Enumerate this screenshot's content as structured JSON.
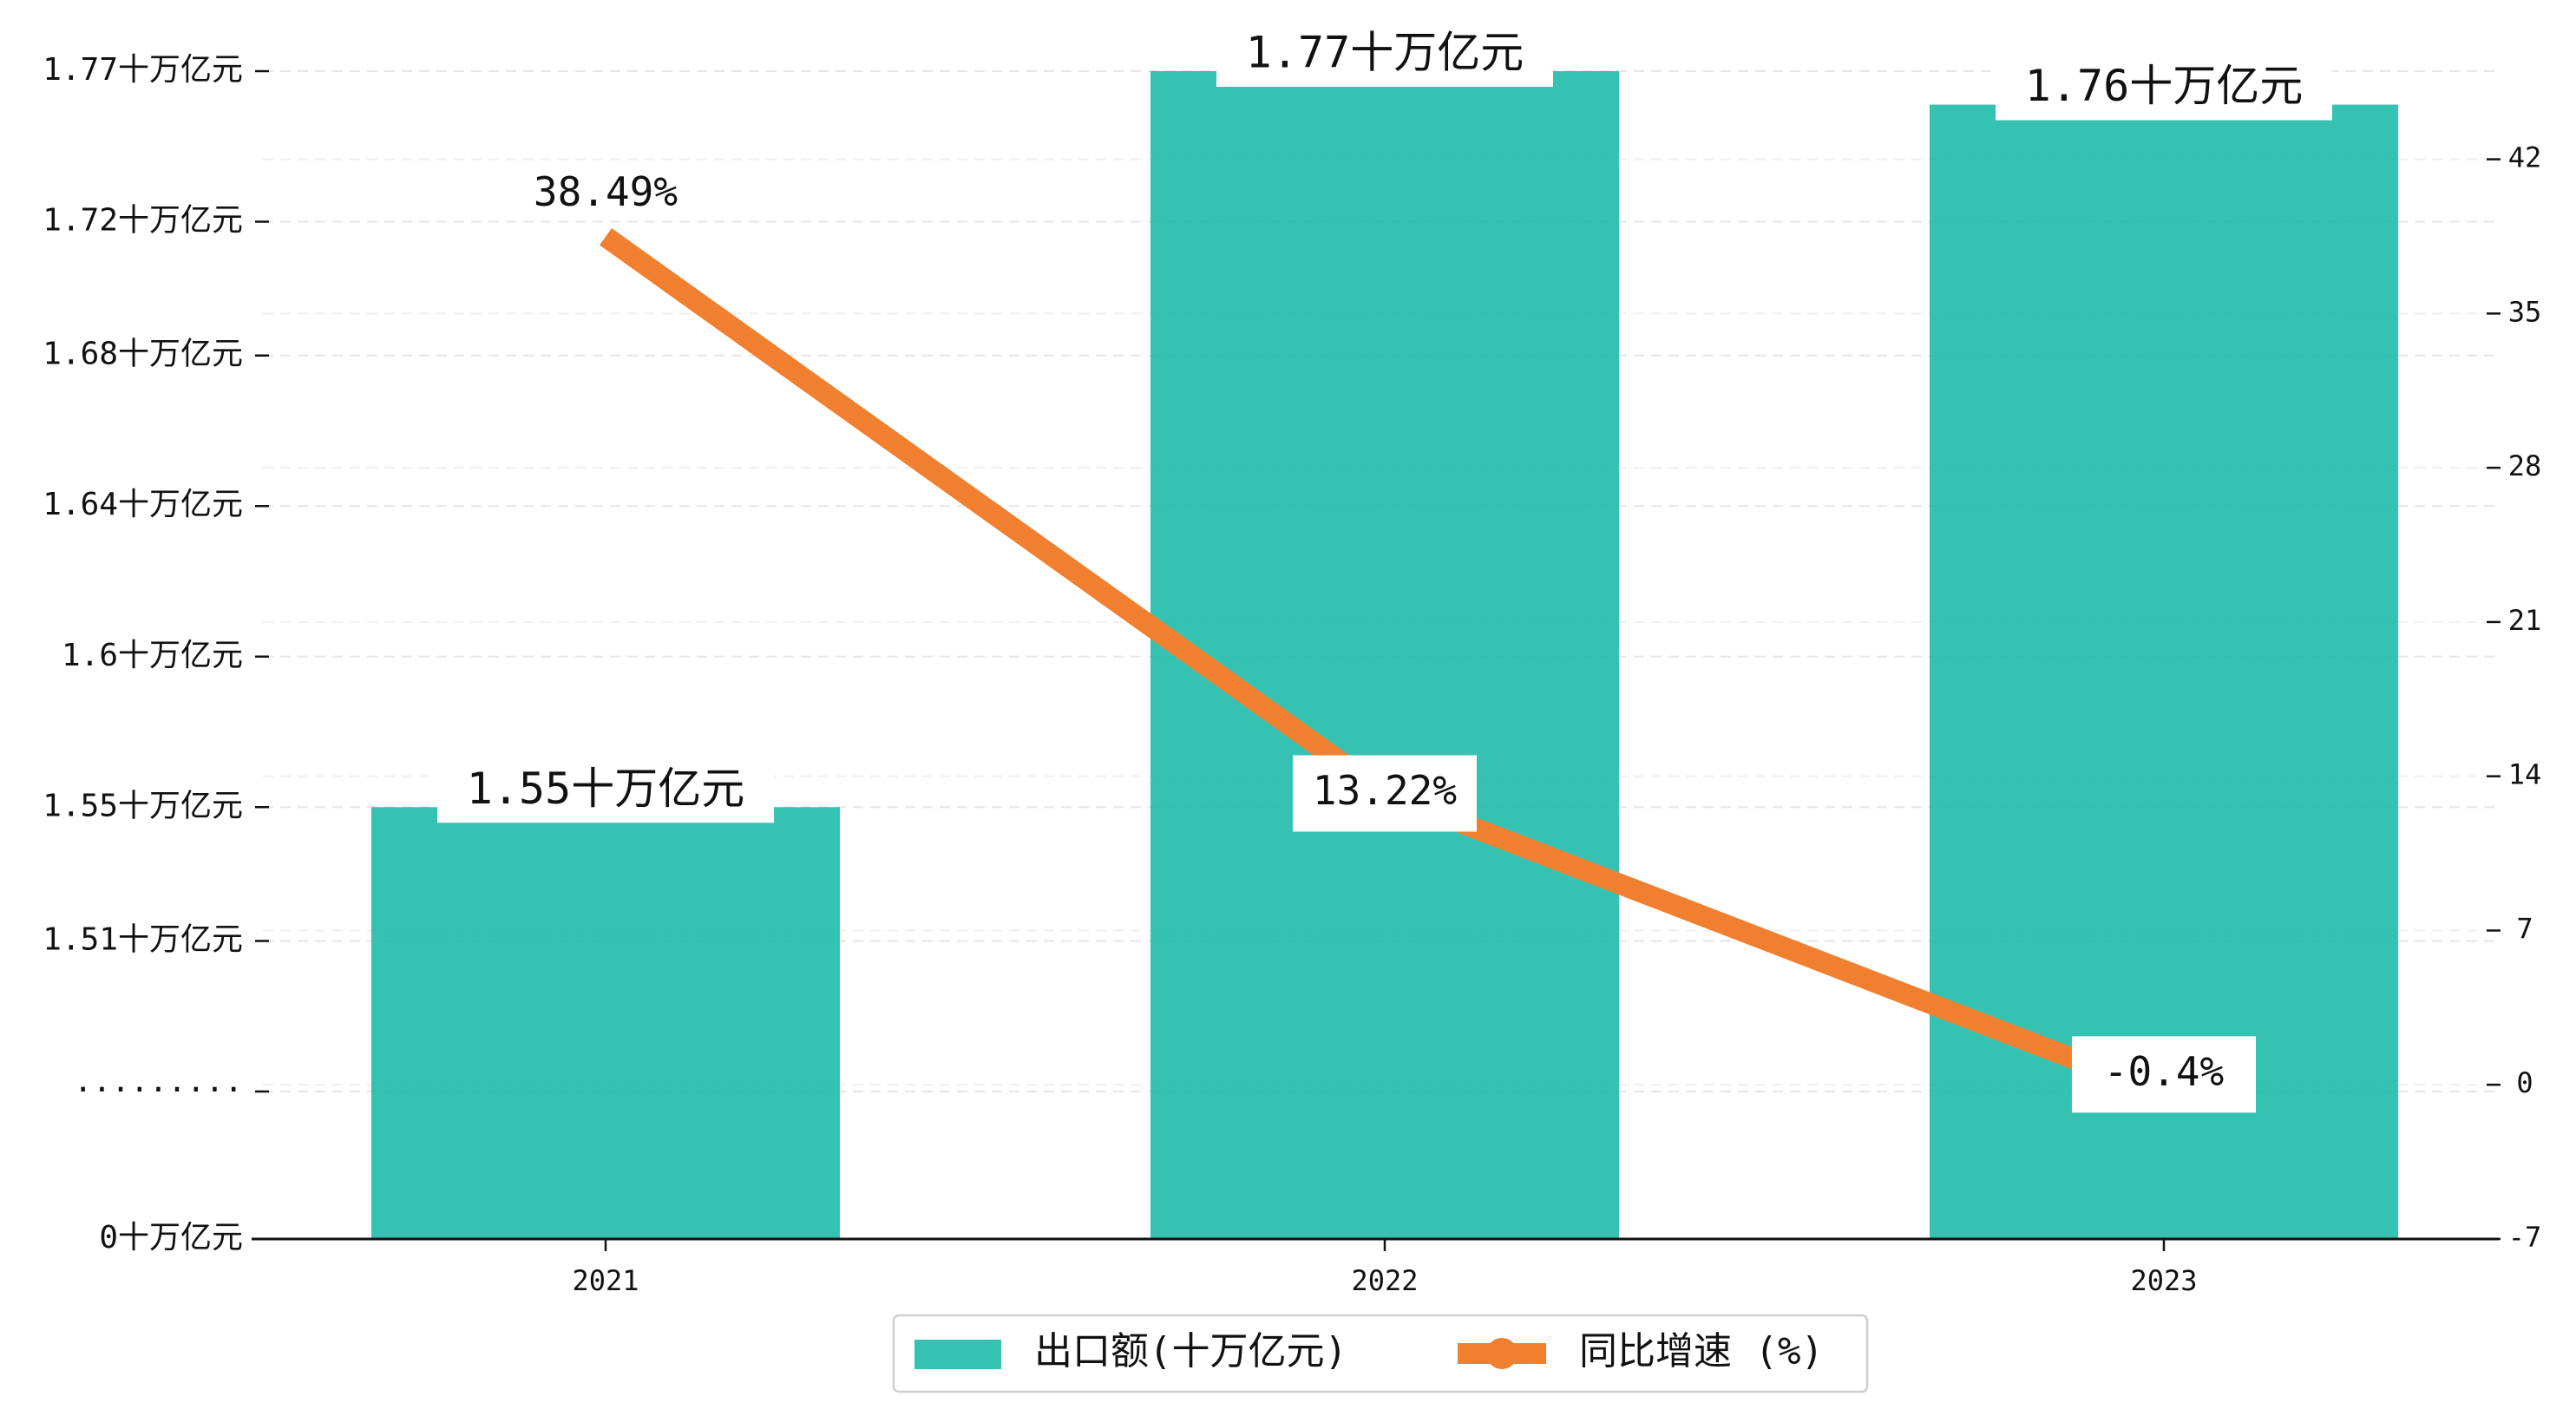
{
  "chart_data": {
    "type": "bar",
    "categories": [
      "2021",
      "2022",
      "2023"
    ],
    "series": [
      {
        "name": "出口额(十万亿元)",
        "type": "bar",
        "axis": "left",
        "values": [
          1.55,
          1.77,
          1.76
        ],
        "labels": [
          "1.55十万亿元",
          "1.77十万亿元",
          "1.76十万亿元"
        ],
        "color": "#1ABAA8"
      },
      {
        "name": "同比增速 (%)",
        "type": "line",
        "axis": "right",
        "values": [
          38.49,
          13.22,
          -0.4
        ],
        "labels": [
          "38.49%",
          "13.22%",
          "-0.4%"
        ],
        "color": "#F08030"
      }
    ],
    "left_axis": {
      "ticks": [
        {
          "label": "0十万亿元",
          "value": null,
          "broken": true,
          "position": "bottom"
        },
        {
          "label": "·········",
          "value": null,
          "broken": true
        },
        {
          "label": "1.51十万亿元",
          "value": 1.51
        },
        {
          "label": "1.55十万亿元",
          "value": 1.55
        },
        {
          "label": "1.6十万亿元",
          "value": 1.595
        },
        {
          "label": "1.64十万亿元",
          "value": 1.64
        },
        {
          "label": "1.68十万亿元",
          "value": 1.685
        },
        {
          "label": "1.72十万亿元",
          "value": 1.725
        },
        {
          "label": "1.77十万亿元",
          "value": 1.77
        }
      ],
      "ylim": [
        1.465,
        1.77
      ],
      "broken_axis": true
    },
    "right_axis": {
      "ticks": [
        -7,
        0,
        7,
        14,
        21,
        28,
        35,
        42
      ],
      "ylim": [
        -7,
        46
      ]
    },
    "grid": "horizontal-dashed",
    "legend_placement": "bottom-center"
  }
}
